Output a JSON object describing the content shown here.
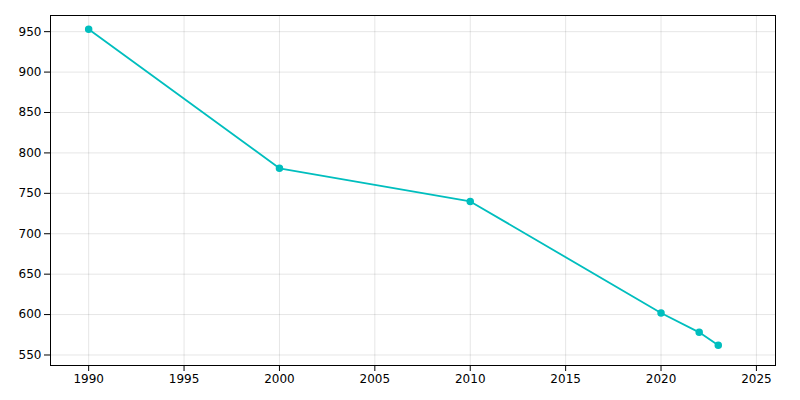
{
  "chart_data": {
    "type": "line",
    "x": [
      1990,
      2000,
      2010,
      2020,
      2022,
      2023
    ],
    "values": [
      953,
      781,
      740,
      602,
      578,
      562
    ],
    "color": "#00BEBE",
    "marker": "circle",
    "xlim": [
      1988,
      2026
    ],
    "ylim": [
      537,
      970
    ],
    "xticks": [
      1990,
      1995,
      2000,
      2005,
      2010,
      2015,
      2020,
      2025
    ],
    "yticks": [
      550,
      600,
      650,
      700,
      750,
      800,
      850,
      900,
      950
    ],
    "grid": true
  }
}
